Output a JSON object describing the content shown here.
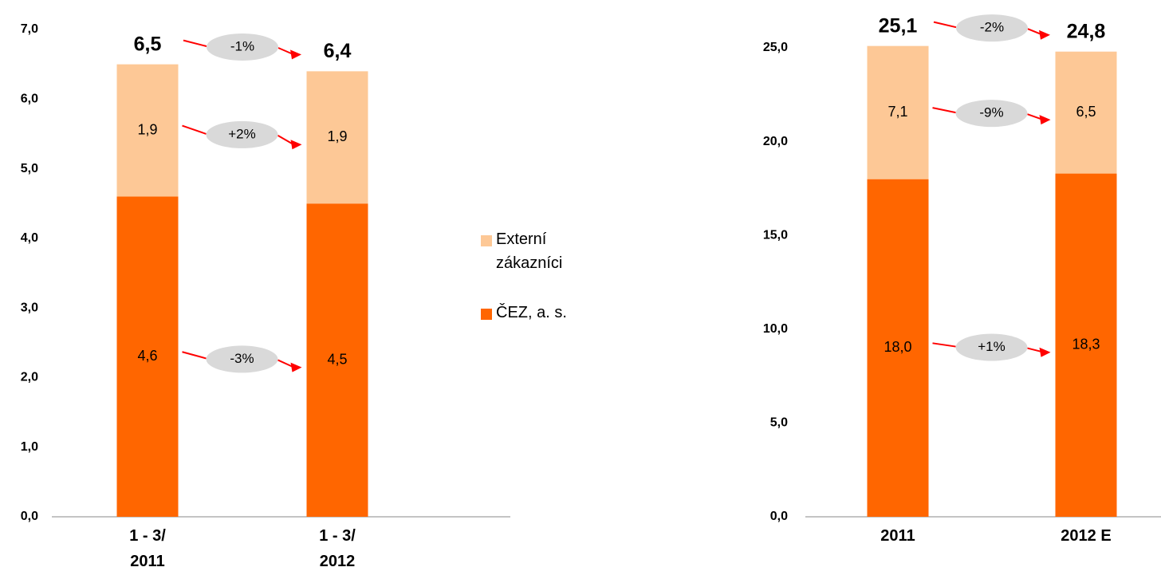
{
  "chart_data": [
    {
      "type": "bar",
      "stacked": true,
      "categories": [
        "1 - 3/ 2011",
        "1 - 3/ 2012"
      ],
      "series": [
        {
          "name": "ČEZ, a. s.",
          "color": "#ff6600",
          "values": [
            4.6,
            4.5
          ],
          "value_labels": [
            "4,6",
            "4,5"
          ],
          "change": "-3%"
        },
        {
          "name": "Externí zákazníci",
          "color": "#fdc896",
          "values": [
            1.9,
            1.9
          ],
          "value_labels": [
            "1,9",
            "1,9"
          ],
          "change": "+2%"
        }
      ],
      "totals": [
        6.5,
        6.4
      ],
      "total_labels": [
        "6,5",
        "6,4"
      ],
      "total_change": "-1%",
      "ylim": [
        0,
        7
      ],
      "yticks": [
        {
          "value": 0,
          "label": "0,0"
        },
        {
          "value": 1,
          "label": "1,0"
        },
        {
          "value": 2,
          "label": "2,0"
        },
        {
          "value": 3,
          "label": "3,0"
        },
        {
          "value": 4,
          "label": "4,0"
        },
        {
          "value": 5,
          "label": "5,0"
        },
        {
          "value": 6,
          "label": "6,0"
        },
        {
          "value": 7,
          "label": "7,0"
        }
      ],
      "legend": true
    },
    {
      "type": "bar",
      "stacked": true,
      "categories": [
        "2011",
        "2012 E"
      ],
      "series": [
        {
          "name": "ČEZ, a. s.",
          "color": "#ff6600",
          "values": [
            18.0,
            18.3
          ],
          "value_labels": [
            "18,0",
            "18,3"
          ],
          "change": "+1%"
        },
        {
          "name": "Externí zákazníci",
          "color": "#fdc896",
          "values": [
            7.1,
            6.5
          ],
          "value_labels": [
            "7,1",
            "6,5"
          ],
          "change": "-9%"
        }
      ],
      "totals": [
        25.1,
        24.8
      ],
      "total_labels": [
        "25,1",
        "24,8"
      ],
      "total_change": "-2%",
      "ylim": [
        0,
        25
      ],
      "yticks": [
        {
          "value": 0,
          "label": "0,0"
        },
        {
          "value": 5,
          "label": "5,0"
        },
        {
          "value": 10,
          "label": "10,0"
        },
        {
          "value": 15,
          "label": "15,0"
        },
        {
          "value": 20,
          "label": "20,0"
        },
        {
          "value": 25,
          "label": "25,0"
        }
      ],
      "legend": false
    }
  ]
}
